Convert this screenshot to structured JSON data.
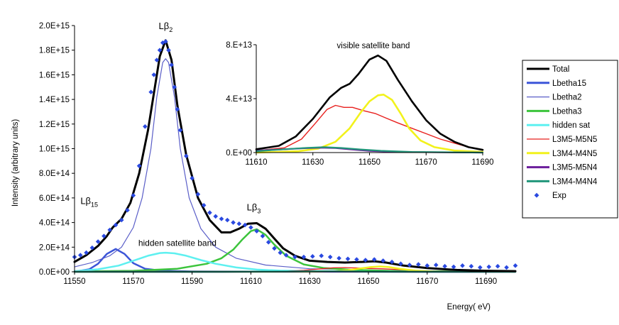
{
  "chart_data": [
    {
      "id": "main",
      "type": "line",
      "title": "",
      "xlabel": "Energy( eV)",
      "ylabel": "Intensity (arbitrary units)",
      "xlim": [
        11550,
        11700
      ],
      "ylim": [
        0,
        2000000000000000.0
      ],
      "xticks": [
        11550,
        11570,
        11590,
        11610,
        11630,
        11650,
        11670,
        11690
      ],
      "xtick_labels": [
        "11550",
        "11570",
        "11590",
        "11610",
        "11630",
        "11650",
        "11670",
        "11690"
      ],
      "yticks": [
        0,
        200000000000000.0,
        400000000000000.0,
        600000000000000.0,
        800000000000000.0,
        1000000000000000.0,
        1200000000000000.0,
        1400000000000000.0,
        1600000000000000.0,
        1800000000000000.0,
        2000000000000000.0
      ],
      "ytick_labels": [
        "0.0E+00",
        "2.0E+14",
        "4.0E+14",
        "6.0E+14",
        "8.0E+14",
        "1.0E+15",
        "1.2E+15",
        "1.4E+15",
        "1.6E+15",
        "1.8E+15",
        "2.0E+15"
      ],
      "grid": false,
      "annotations": [
        {
          "id": "lb2",
          "base": "Lβ",
          "sub": "2",
          "x": 11581,
          "y": 1970000000000000.0
        },
        {
          "id": "lb15",
          "base": "Lβ",
          "sub": "15",
          "x": 11555,
          "y": 550000000000000.0
        },
        {
          "id": "lb3",
          "base": "Lβ",
          "sub": "3",
          "x": 11611,
          "y": 500000000000000.0
        },
        {
          "id": "hidden",
          "base": "hidden satellite band",
          "sub": "",
          "x": 11585,
          "y": 210000000000000.0
        }
      ],
      "series": [
        {
          "name": "Total",
          "color": "#000000",
          "width": 3,
          "x": [
            11550,
            11554,
            11558,
            11561,
            11563,
            11566,
            11569,
            11572,
            11575,
            11577,
            11579,
            11581,
            11583,
            11585,
            11588,
            11592,
            11596,
            11600,
            11603,
            11606,
            11609,
            11612,
            11615,
            11618,
            11621,
            11625,
            11630,
            11636,
            11642,
            11648,
            11652,
            11656,
            11662,
            11670,
            11680,
            11690,
            11700
          ],
          "y": [
            80000000000000.0,
            135000000000000.0,
            210000000000000.0,
            290000000000000.0,
            360000000000000.0,
            430000000000000.0,
            560000000000000.0,
            800000000000000.0,
            1150000000000000.0,
            1450000000000000.0,
            1750000000000000.0,
            1880000000000000.0,
            1720000000000000.0,
            1350000000000000.0,
            950000000000000.0,
            600000000000000.0,
            420000000000000.0,
            320000000000000.0,
            320000000000000.0,
            350000000000000.0,
            390000000000000.0,
            395000000000000.0,
            350000000000000.0,
            270000000000000.0,
            190000000000000.0,
            130000000000000.0,
            90000000000000.0,
            80000000000000.0,
            75000000000000.0,
            80000000000000.0,
            85000000000000.0,
            75000000000000.0,
            50000000000000.0,
            30000000000000.0,
            15000000000000.0,
            8000000000000.0,
            5000000000000.0
          ]
        },
        {
          "name": "Lbetha15",
          "color": "#3b55d8",
          "width": 2.5,
          "x": [
            11550,
            11555,
            11558,
            11561,
            11564,
            11567,
            11570,
            11574,
            11580,
            11590,
            11610,
            11700
          ],
          "y": [
            1000000000000.0,
            20000000000000.0,
            65000000000000.0,
            145000000000000.0,
            185000000000000.0,
            145000000000000.0,
            70000000000000.0,
            25000000000000.0,
            8000000000000.0,
            3000000000000.0,
            1000000000000.0,
            0
          ]
        },
        {
          "name": "Lbetha2",
          "color": "#5a5ec8",
          "width": 1.2,
          "x": [
            11550,
            11556,
            11562,
            11566,
            11570,
            11573,
            11576,
            11578,
            11580,
            11581,
            11582,
            11584,
            11586,
            11589,
            11593,
            11598,
            11605,
            11615,
            11630,
            11660,
            11700
          ],
          "y": [
            40000000000000.0,
            75000000000000.0,
            130000000000000.0,
            200000000000000.0,
            360000000000000.0,
            600000000000000.0,
            1000000000000000.0,
            1420000000000000.0,
            1700000000000000.0,
            1730000000000000.0,
            1700000000000000.0,
            1420000000000000.0,
            1000000000000000.0,
            600000000000000.0,
            350000000000000.0,
            200000000000000.0,
            110000000000000.0,
            55000000000000.0,
            25000000000000.0,
            10000000000000.0,
            5000000000000.0
          ]
        },
        {
          "name": "Lbetha3",
          "color": "#3cc43c",
          "width": 2.5,
          "x": [
            11550,
            11570,
            11585,
            11595,
            11600,
            11604,
            11607,
            11610,
            11612,
            11615,
            11618,
            11622,
            11628,
            11635,
            11645,
            11660,
            11700
          ],
          "y": [
            3000000000000.0,
            8000000000000.0,
            25000000000000.0,
            65000000000000.0,
            110000000000000.0,
            180000000000000.0,
            260000000000000.0,
            330000000000000.0,
            345000000000000.0,
            300000000000000.0,
            220000000000000.0,
            130000000000000.0,
            60000000000000.0,
            30000000000000.0,
            15000000000000.0,
            6000000000000.0,
            2000000000000.0
          ]
        },
        {
          "name": "hidden sat",
          "color": "#5ef0f0",
          "width": 2.5,
          "x": [
            11550,
            11558,
            11565,
            11570,
            11575,
            11579,
            11581,
            11584,
            11588,
            11593,
            11598,
            11605,
            11612,
            11620,
            11630,
            11650,
            11700
          ],
          "y": [
            5000000000000.0,
            20000000000000.0,
            50000000000000.0,
            90000000000000.0,
            130000000000000.0,
            152000000000000.0,
            155000000000000.0,
            150000000000000.0,
            130000000000000.0,
            95000000000000.0,
            65000000000000.0,
            35000000000000.0,
            18000000000000.0,
            9000000000000.0,
            5000000000000.0,
            2000000000000.0,
            1000000000000.0
          ]
        },
        {
          "name": "L3M5-M5N5",
          "color": "#e8201e",
          "width": 1.3,
          "x": [
            11550,
            11620,
            11628,
            11634,
            11638,
            11642,
            11646,
            11650,
            11655,
            11660,
            11666,
            11672,
            11680,
            11700
          ],
          "y": [
            0,
            2000000000000.0,
            12000000000000.0,
            24000000000000.0,
            32000000000000.0,
            34000000000000.0,
            31000000000000.0,
            27000000000000.0,
            24000000000000.0,
            18000000000000.0,
            11000000000000.0,
            6000000000000.0,
            2000000000000.0,
            0
          ]
        },
        {
          "name": "L3M4-M4N5",
          "color": "#f2f21c",
          "width": 2.5,
          "x": [
            11550,
            11630,
            11638,
            11643,
            11647,
            11651,
            11654,
            11657,
            11661,
            11666,
            11672,
            11680,
            11700
          ],
          "y": [
            0,
            1000000000000.0,
            4000000000000.0,
            12000000000000.0,
            26000000000000.0,
            39000000000000.0,
            43500000000000.0,
            38000000000000.0,
            23000000000000.0,
            10000000000000.0,
            3000000000000.0,
            1000000000000.0,
            0
          ]
        },
        {
          "name": "L3M5-M5N4",
          "color": "#6c1e9c",
          "width": 2.5,
          "x": [
            11550,
            11600,
            11615,
            11622,
            11628,
            11634,
            11640,
            11648,
            11660,
            11700
          ],
          "y": [
            0,
            0,
            1000000000000.0,
            2000000000000.0,
            3200000000000.0,
            3600000000000.0,
            3000000000000.0,
            1500000000000.0,
            500000000000.0,
            0
          ]
        },
        {
          "name": "L3M4-M4N4",
          "color": "#21967a",
          "width": 2.5,
          "x": [
            11550,
            11600,
            11615,
            11623,
            11629,
            11635,
            11642,
            11650,
            11662,
            11700
          ],
          "y": [
            0,
            0,
            1000000000000.0,
            2200000000000.0,
            3600000000000.0,
            4000000000000.0,
            3200000000000.0,
            1800000000000.0,
            600000000000.0,
            0
          ]
        }
      ],
      "scatter": {
        "name": "Exp",
        "color": "#2a49e0",
        "x": [
          11550,
          11552,
          11554,
          11556,
          11558,
          11560,
          11562,
          11564,
          11566,
          11568,
          11570,
          11572,
          11574,
          11576,
          11577,
          11578,
          11579,
          11580,
          11581,
          11582,
          11583,
          11584,
          11585,
          11586,
          11588,
          11590,
          11592,
          11594,
          11596,
          11598,
          11600,
          11602,
          11604,
          11606,
          11608,
          11610,
          11612,
          11614,
          11616,
          11618,
          11620,
          11622,
          11625,
          11628,
          11631,
          11634,
          11637,
          11640,
          11643,
          11646,
          11649,
          11652,
          11655,
          11658,
          11661,
          11664,
          11667,
          11670,
          11673,
          11676,
          11679,
          11682,
          11685,
          11688,
          11691,
          11694,
          11697,
          11700
        ],
        "y": [
          120000000000000.0,
          135000000000000.0,
          155000000000000.0,
          195000000000000.0,
          245000000000000.0,
          290000000000000.0,
          340000000000000.0,
          380000000000000.0,
          420000000000000.0,
          500000000000000.0,
          620000000000000.0,
          860000000000000.0,
          1180000000000000.0,
          1460000000000000.0,
          1600000000000000.0,
          1720000000000000.0,
          1800000000000000.0,
          1860000000000000.0,
          1870000000000000.0,
          1800000000000000.0,
          1680000000000000.0,
          1500000000000000.0,
          1320000000000000.0,
          1150000000000000.0,
          940000000000000.0,
          760000000000000.0,
          630000000000000.0,
          540000000000000.0,
          480000000000000.0,
          450000000000000.0,
          430000000000000.0,
          420000000000000.0,
          400000000000000.0,
          390000000000000.0,
          380000000000000.0,
          360000000000000.0,
          330000000000000.0,
          290000000000000.0,
          240000000000000.0,
          190000000000000.0,
          155000000000000.0,
          135000000000000.0,
          120000000000000.0,
          120000000000000.0,
          125000000000000.0,
          130000000000000.0,
          120000000000000.0,
          110000000000000.0,
          105000000000000.0,
          100000000000000.0,
          95000000000000.0,
          100000000000000.0,
          90000000000000.0,
          80000000000000.0,
          65000000000000.0,
          55000000000000.0,
          60000000000000.0,
          50000000000000.0,
          55000000000000.0,
          45000000000000.0,
          40000000000000.0,
          50000000000000.0,
          45000000000000.0,
          35000000000000.0,
          40000000000000.0,
          45000000000000.0,
          35000000000000.0,
          50000000000000.0
        ]
      }
    },
    {
      "id": "inset",
      "type": "line",
      "title": "visible satellite band",
      "xlim": [
        11610,
        11690
      ],
      "ylim": [
        0,
        80000000000000.0
      ],
      "xticks": [
        11610,
        11630,
        11650,
        11670,
        11690
      ],
      "xtick_labels": [
        "11610",
        "11630",
        "11650",
        "11670",
        "11690"
      ],
      "yticks": [
        0,
        40000000000000.0,
        80000000000000.0
      ],
      "ytick_labels": [
        "0.E+00",
        "4.E+13",
        "8.E+13"
      ],
      "grid": false,
      "series": [
        {
          "name": "Total",
          "color": "#000000",
          "width": 2.6,
          "x": [
            11610,
            11618,
            11624,
            11630,
            11636,
            11640,
            11643,
            11646,
            11650,
            11653,
            11656,
            11660,
            11665,
            11670,
            11675,
            11680,
            11685,
            11690
          ],
          "y": [
            2500000000000.0,
            5000000000000.0,
            12000000000000.0,
            25000000000000.0,
            41000000000000.0,
            48000000000000.0,
            51000000000000.0,
            58000000000000.0,
            69000000000000.0,
            72000000000000.0,
            68000000000000.0,
            54000000000000.0,
            38000000000000.0,
            24000000000000.0,
            14000000000000.0,
            8000000000000.0,
            4000000000000.0,
            2000000000000.0
          ]
        },
        {
          "name": "L3M5-M5N5",
          "color": "#e8201e",
          "width": 1.4,
          "x": [
            11610,
            11620,
            11626,
            11631,
            11635,
            11638,
            11641,
            11644,
            11648,
            11652,
            11656,
            11660,
            11665,
            11670,
            11675,
            11680,
            11685,
            11690
          ],
          "y": [
            1500000000000.0,
            3500000000000.0,
            10000000000000.0,
            22000000000000.0,
            32000000000000.0,
            35000000000000.0,
            33500000000000.0,
            33500000000000.0,
            31000000000000.0,
            29000000000000.0,
            25500000000000.0,
            22000000000000.0,
            18000000000000.0,
            14000000000000.0,
            10000000000000.0,
            7000000000000.0,
            4000000000000.0,
            2000000000000.0
          ]
        },
        {
          "name": "L3M4-M4N5",
          "color": "#f2f21c",
          "width": 2.6,
          "x": [
            11610,
            11625,
            11632,
            11638,
            11643,
            11647,
            11650,
            11653,
            11655,
            11658,
            11661,
            11664,
            11668,
            11673,
            11680,
            11690
          ],
          "y": [
            0,
            1000000000000.0,
            3000000000000.0,
            8000000000000.0,
            18000000000000.0,
            30000000000000.0,
            38000000000000.0,
            42500000000000.0,
            43000000000000.0,
            39000000000000.0,
            29000000000000.0,
            18000000000000.0,
            9000000000000.0,
            4000000000000.0,
            1500000000000.0,
            500000000000.0
          ]
        },
        {
          "name": "L3M5-M5N4",
          "color": "#6c1e9c",
          "width": 2.2,
          "x": [
            11610,
            11620,
            11627,
            11633,
            11638,
            11643,
            11650,
            11660,
            11690
          ],
          "y": [
            1500000000000.0,
            2500000000000.0,
            3200000000000.0,
            3600000000000.0,
            3300000000000.0,
            2400000000000.0,
            1200000000000.0,
            400000000000.0,
            0
          ]
        },
        {
          "name": "L3M4-M4N4",
          "color": "#21967a",
          "width": 2.2,
          "x": [
            11610,
            11620,
            11628,
            11634,
            11640,
            11646,
            11654,
            11665,
            11690
          ],
          "y": [
            1000000000000.0,
            2500000000000.0,
            3500000000000.0,
            4000000000000.0,
            3400000000000.0,
            2400000000000.0,
            1300000000000.0,
            500000000000.0,
            0
          ]
        }
      ]
    }
  ],
  "legend": {
    "position": "right",
    "items": [
      {
        "label": "Total",
        "color": "#000000",
        "kind": "line",
        "width": 3
      },
      {
        "label": "Lbetha15",
        "color": "#3b55d8",
        "kind": "line",
        "width": 3
      },
      {
        "label": "Lbetha2",
        "color": "#5a5ec8",
        "kind": "line",
        "width": 1.2
      },
      {
        "label": "Lbetha3",
        "color": "#3cc43c",
        "kind": "line",
        "width": 3
      },
      {
        "label": "hidden sat",
        "color": "#5ef0f0",
        "kind": "line",
        "width": 3
      },
      {
        "label": "L3M5-M5N5",
        "color": "#e8201e",
        "kind": "line",
        "width": 1.3
      },
      {
        "label": "L3M4-M4N5",
        "color": "#f2f21c",
        "kind": "line",
        "width": 3
      },
      {
        "label": "L3M5-M5N4",
        "color": "#6c1e9c",
        "kind": "line",
        "width": 3
      },
      {
        "label": "L3M4-M4N4",
        "color": "#21967a",
        "kind": "line",
        "width": 3
      },
      {
        "label": "Exp",
        "color": "#2a49e0",
        "kind": "marker",
        "width": 0
      }
    ]
  }
}
